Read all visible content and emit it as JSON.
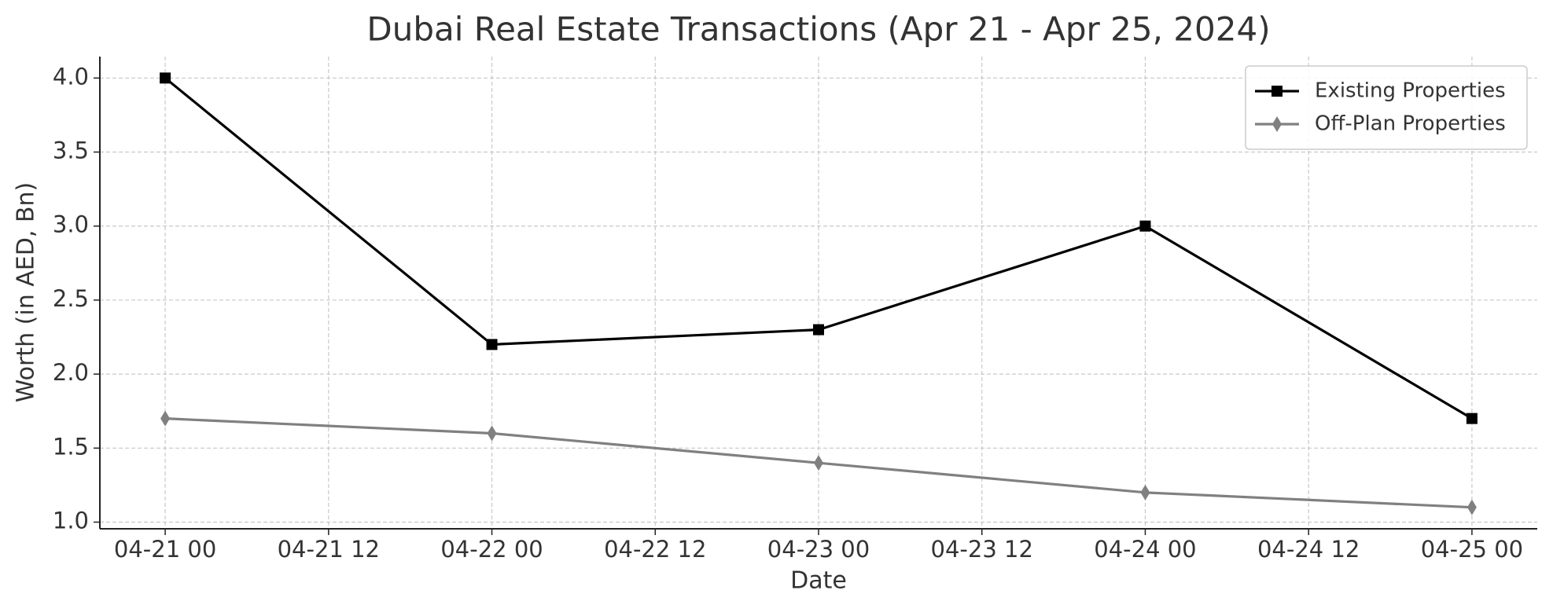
{
  "chart_data": {
    "type": "line",
    "title": "Dubai Real Estate Transactions (Apr 21 - Apr 25, 2024)",
    "x_label": "Date",
    "y_label": "Worth (in AED, Bn)",
    "x": [
      "04-21 00",
      "04-22 00",
      "04-23 00",
      "04-24 00",
      "04-25 00"
    ],
    "xticks": [
      "04-21 00",
      "04-21 12",
      "04-22 00",
      "04-22 12",
      "04-23 00",
      "04-23 12",
      "04-24 00",
      "04-24 12",
      "04-25 00"
    ],
    "ylim": [
      0.955,
      4.145
    ],
    "yticks": [
      {
        "value": 1,
        "label": "1.0"
      },
      1.5,
      {
        "value": 2,
        "label": "2.0"
      },
      2.5,
      {
        "value": 3,
        "label": "3.0"
      },
      3.5,
      {
        "value": 4,
        "label": "4.0"
      }
    ],
    "grid": true,
    "legend": "upper right",
    "series": [
      {
        "name": "Existing Properties",
        "color": "#000000",
        "marker": "square",
        "values": [
          4.0,
          2.2,
          2.3,
          3.0,
          1.7
        ]
      },
      {
        "name": "Off-Plan Properties",
        "color": "#808080",
        "marker": "diamond",
        "values": [
          1.7,
          1.6,
          1.4,
          1.2,
          1.1
        ]
      }
    ]
  }
}
